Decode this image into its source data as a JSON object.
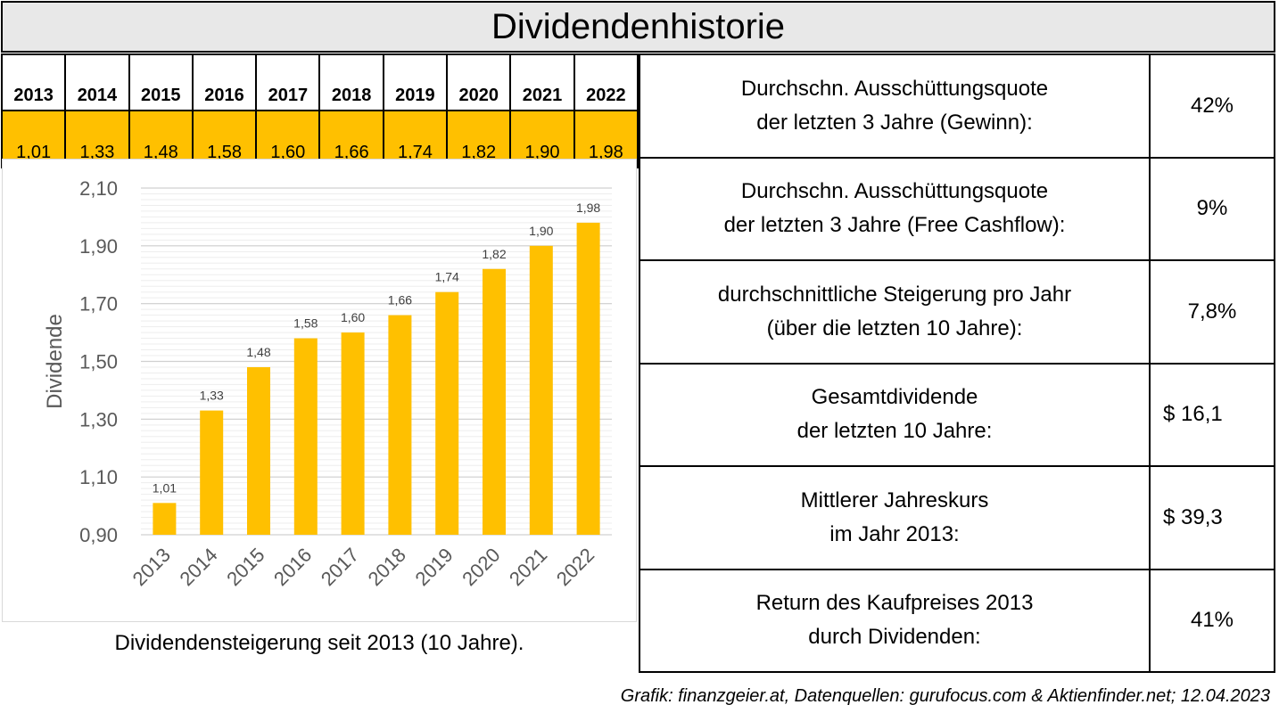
{
  "header": {
    "title": "Dividendenhistorie"
  },
  "year_table": {
    "years": [
      "2013",
      "2014",
      "2015",
      "2016",
      "2017",
      "2018",
      "2019",
      "2020",
      "2021",
      "2022"
    ],
    "values": [
      "1,01",
      "1,33",
      "1,48",
      "1,58",
      "1,60",
      "1,66",
      "1,74",
      "1,82",
      "1,90",
      "1,98"
    ]
  },
  "metrics": [
    {
      "label_lines": [
        "Durchschn. Ausschüttungsquote",
        "der letzten 3 Jahre (Gewinn):"
      ],
      "value": "42%"
    },
    {
      "label_lines": [
        "Durchschn. Ausschüttungsquote",
        "der letzten 3 Jahre (Free Cashflow):"
      ],
      "value": "9%"
    },
    {
      "label_lines": [
        "durchschnittliche Steigerung pro Jahr",
        "(über die letzten 10 Jahre):"
      ],
      "value": "7,8%"
    },
    {
      "label_lines": [
        "Gesamtdividende",
        "der letzten 10 Jahre:"
      ],
      "value": "$ 16,1"
    },
    {
      "label_lines": [
        "Mittlerer Jahreskurs",
        "im Jahr 2013:"
      ],
      "value": "$ 39,3"
    },
    {
      "label_lines": [
        "Return des Kaufpreises 2013",
        "durch Dividenden:"
      ],
      "value": "41%"
    }
  ],
  "caption": "Dividendensteigerung seit 2013 (10 Jahre).",
  "source_note": "Grafik: finanzgeier.at, Datenquellen: gurufocus.com & Aktienfinder.net; 12.04.2023",
  "colors": {
    "accent": "#ffc000",
    "header_bg": "#e8e8e8",
    "grid": "#d9d9d9"
  },
  "chart_data": {
    "type": "bar",
    "categories": [
      "2013",
      "2014",
      "2015",
      "2016",
      "2017",
      "2018",
      "2019",
      "2020",
      "2021",
      "2022"
    ],
    "values": [
      1.01,
      1.33,
      1.48,
      1.58,
      1.6,
      1.66,
      1.74,
      1.82,
      1.9,
      1.98
    ],
    "data_labels": [
      "1,01",
      "1,33",
      "1,48",
      "1,58",
      "1,60",
      "1,66",
      "1,74",
      "1,82",
      "1,90",
      "1,98"
    ],
    "ylabel": "Dividende",
    "ylim": [
      0.9,
      2.1
    ],
    "yticks": [
      0.9,
      1.1,
      1.3,
      1.5,
      1.7,
      1.9,
      2.1
    ],
    "ytick_labels": [
      "0,90",
      "1,10",
      "1,30",
      "1,50",
      "1,70",
      "1,90",
      "2,10"
    ],
    "grid": true,
    "color": "#ffc000"
  }
}
